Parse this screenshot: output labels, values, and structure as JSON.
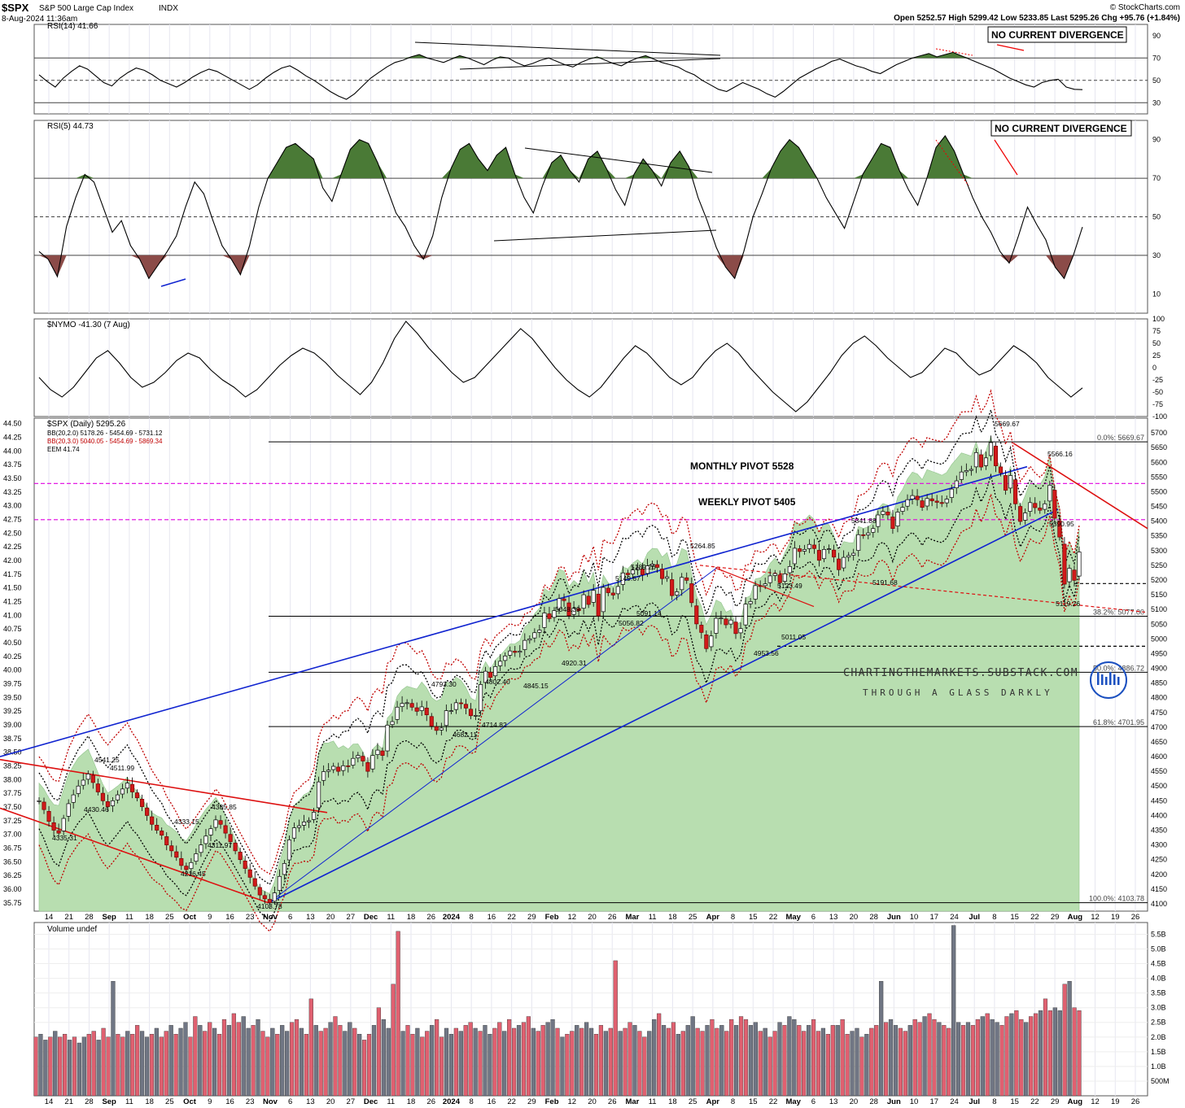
{
  "header": {
    "symbol": "$SPX",
    "name": "S&P 500 Large Cap Index",
    "exchange": "INDX",
    "datetime": "8-Aug-2024 11:36am",
    "brand": "© StockCharts.com",
    "quote": "Open 5252.57  High 5299.42  Low 5233.85  Last 5295.26  Chg +95.76 (+1.84%)"
  },
  "colors": {
    "up_candle": "#ffffff",
    "down_candle": "#d11a1a",
    "volume_up": "#e06070",
    "volume_down": "#707684",
    "rsi_fill_high": "#4a7a36",
    "rsi_fill_low": "#8b4b48",
    "eem_fill": "#b8deb0",
    "blue_trendline": "#1024d0",
    "red_trendline": "#dd1010",
    "pivot_line": "#e000e0",
    "bollinger": "#c00000"
  },
  "panels": {
    "rsi14": {
      "legend": "RSI(14) 41.66",
      "note": "NO CURRENT DIVERGENCE",
      "ticks": [
        "90",
        "70",
        "50",
        "30"
      ]
    },
    "rsi5": {
      "legend": "RSI(5) 44.73",
      "note": "NO CURRENT DIVERGENCE",
      "ticks": [
        "90",
        "70",
        "50",
        "30",
        "10"
      ]
    },
    "nymo": {
      "legend": "$NYMO -41.30 (7 Aug)",
      "ticks": [
        "100",
        "75",
        "50",
        "25",
        "0",
        "-25",
        "-50",
        "-75",
        "-100"
      ]
    },
    "price": {
      "legend_1": "$SPX (Daily) 5295.26",
      "legend_2": "BB(20,2.0) 5178.26 - 5454.69 - 5731.12",
      "legend_3": "BB(20,3.0) 5040.05 - 5454.69 - 5869.34",
      "legend_4": "EEM 41.74",
      "monthly_pivot": "MONTHLY PIVOT 5528",
      "weekly_pivot": "WEEKLY PIVOT 5405",
      "watermark_1": "CHARTINGTHEMARKETS.SUBSTACK.COM",
      "watermark_2": "THROUGH A GLASS DARKLY",
      "left_ticks": [
        "44.50",
        "44.25",
        "44.00",
        "43.75",
        "43.50",
        "43.25",
        "43.00",
        "42.75",
        "42.50",
        "42.25",
        "42.00",
        "41.75",
        "41.50",
        "41.25",
        "41.00",
        "40.75",
        "40.50",
        "40.25",
        "40.00",
        "39.75",
        "39.50",
        "39.25",
        "39.00",
        "38.75",
        "38.50",
        "38.25",
        "38.00",
        "37.75",
        "37.50",
        "37.25",
        "37.00",
        "36.75",
        "36.50",
        "36.25",
        "36.00",
        "35.75"
      ],
      "right_ticks": [
        "5700",
        "5650",
        "5600",
        "5550",
        "5500",
        "5450",
        "5400",
        "5350",
        "5300",
        "5250",
        "5200",
        "5150",
        "5100",
        "5050",
        "5000",
        "4950",
        "4900",
        "4850",
        "4800",
        "4750",
        "4700",
        "4650",
        "4600",
        "4550",
        "4500",
        "4450",
        "4400",
        "4350",
        "4300",
        "4250",
        "4200",
        "4150",
        "4100"
      ],
      "fib_labels": [
        "0.0%: 5669.67",
        "38.2%: 5077.00",
        "50.0%: 4886.72",
        "61.8%: 4701.95",
        "100.0%: 4103.78"
      ],
      "price_labels": [
        "5669.67",
        "5566.16",
        "5390.95",
        "5119.26",
        "5341.88",
        "5191.68",
        "5123.49",
        "5011.05",
        "4953.56",
        "5264.85",
        "5189.26",
        "5149.67",
        "5091.14",
        "5056.82",
        "5048.39",
        "4920.31",
        "4845.15",
        "4802.40",
        "4793.30",
        "4714.82",
        "4682.11",
        "4541.25",
        "4511.99",
        "4430.46",
        "4385.85",
        "4333.15",
        "4335.31",
        "4311.97",
        "4216.45",
        "4103.78"
      ]
    },
    "volume": {
      "legend": "Volume undef",
      "ticks": [
        "5.5B",
        "5.0B",
        "4.5B",
        "4.0B",
        "3.5B",
        "3.0B",
        "2.5B",
        "2.0B",
        "1.5B",
        "1.0B",
        "500M"
      ]
    }
  },
  "x_axis_labels": [
    "14",
    "21",
    "28",
    "Sep",
    "11",
    "18",
    "25",
    "Oct",
    "9",
    "16",
    "23",
    "Nov",
    "6",
    "13",
    "20",
    "27",
    "Dec",
    "11",
    "18",
    "26",
    "2024",
    "8",
    "16",
    "22",
    "29",
    "Feb",
    "12",
    "20",
    "26",
    "Mar",
    "11",
    "18",
    "25",
    "Apr",
    "8",
    "15",
    "22",
    "May",
    "6",
    "13",
    "20",
    "28",
    "Jun",
    "10",
    "17",
    "24",
    "Jul",
    "8",
    "15",
    "22",
    "29",
    "Aug",
    "12",
    "19",
    "26"
  ],
  "chart_data": [
    {
      "type": "line",
      "title": "RSI(14) 41.66",
      "ylim": [
        20,
        100
      ],
      "reference_lines": [
        70,
        50,
        30
      ],
      "values": [
        55,
        49,
        44,
        52,
        58,
        63,
        60,
        54,
        48,
        45,
        52,
        57,
        61,
        59,
        55,
        50,
        47,
        44,
        48,
        53,
        57,
        60,
        58,
        54,
        50,
        46,
        42,
        46,
        52,
        57,
        61,
        63,
        59,
        54,
        50,
        45,
        40,
        36,
        33,
        38,
        45,
        52,
        57,
        62,
        66,
        68,
        71,
        73,
        70,
        68,
        66,
        69,
        72,
        70,
        67,
        64,
        68,
        71,
        70,
        66,
        63,
        65,
        68,
        70,
        67,
        64,
        62,
        66,
        69,
        71,
        68,
        65,
        63,
        67,
        70,
        72,
        69,
        66,
        64,
        62,
        58,
        55,
        50,
        46,
        42,
        40,
        44,
        48,
        45,
        42,
        38,
        35,
        40,
        46,
        52,
        56,
        60,
        63,
        67,
        69,
        66,
        63,
        61,
        58,
        56,
        60,
        64,
        67,
        70,
        72,
        74,
        71,
        73,
        75,
        72,
        69,
        66,
        63,
        60,
        56,
        52,
        49,
        46,
        44,
        48,
        50,
        51,
        44,
        42,
        41.66
      ]
    },
    {
      "type": "line",
      "title": "RSI(5) 44.73",
      "ylim": [
        0,
        100
      ],
      "reference_lines": [
        70,
        50,
        30
      ],
      "values": [
        32,
        28,
        19,
        45,
        60,
        72,
        68,
        55,
        42,
        48,
        35,
        28,
        18,
        25,
        32,
        40,
        55,
        68,
        62,
        48,
        35,
        28,
        20,
        35,
        55,
        70,
        78,
        86,
        88,
        84,
        80,
        65,
        58,
        72,
        85,
        90,
        88,
        78,
        65,
        52,
        45,
        35,
        28,
        40,
        60,
        75,
        85,
        88,
        80,
        74,
        82,
        86,
        72,
        60,
        52,
        66,
        78,
        82,
        74,
        68,
        80,
        84,
        75,
        64,
        56,
        72,
        80,
        74,
        66,
        78,
        84,
        76,
        60,
        48,
        34,
        24,
        18,
        32,
        50,
        62,
        75,
        84,
        90,
        86,
        78,
        70,
        60,
        52,
        44,
        58,
        72,
        80,
        88,
        86,
        74,
        64,
        56,
        70,
        86,
        92,
        84,
        72,
        60,
        50,
        42,
        32,
        26,
        40,
        55,
        46,
        38,
        24,
        18,
        30,
        44.73
      ]
    },
    {
      "type": "line",
      "title": "$NYMO -41.30 (7 Aug)",
      "ylim": [
        -100,
        100
      ],
      "values": [
        -20,
        -45,
        -60,
        -40,
        -10,
        20,
        35,
        10,
        -20,
        -40,
        -30,
        -10,
        15,
        30,
        20,
        -5,
        -25,
        -40,
        -60,
        -45,
        -20,
        5,
        25,
        40,
        30,
        10,
        -15,
        -35,
        -55,
        -30,
        10,
        60,
        95,
        70,
        40,
        15,
        -10,
        -30,
        -20,
        5,
        30,
        55,
        80,
        60,
        30,
        0,
        -25,
        -45,
        -60,
        -40,
        -10,
        20,
        45,
        30,
        5,
        -20,
        -35,
        -20,
        10,
        35,
        50,
        30,
        0,
        -25,
        -50,
        -70,
        -90,
        -70,
        -40,
        -10,
        25,
        50,
        65,
        45,
        20,
        0,
        -20,
        -10,
        15,
        40,
        30,
        5,
        -15,
        -5,
        20,
        45,
        30,
        10,
        -20,
        -40,
        -60,
        -41.3
      ]
    },
    {
      "type": "candlestick",
      "title": "$SPX (Daily) 5295.26",
      "ylim": [
        4075,
        5750
      ],
      "secondary_y": {
        "label": "EEM 41.74",
        "ylim": [
          35.6,
          44.6
        ]
      },
      "horizontal_levels": {
        "monthly_pivot": 5528,
        "weekly_pivot": 5405,
        "fib_0": 5669.67,
        "fib_38_2": 5077.0,
        "fib_50": 4886.72,
        "fib_61_8": 4701.95,
        "fib_100": 4103.78
      },
      "key_points": [
        {
          "label": "4335.31",
          "value": 4335.31
        },
        {
          "label": "4541.25",
          "value": 4541.25
        },
        {
          "label": "4103.78",
          "value": 4103.78
        },
        {
          "label": "4793.30",
          "value": 4793.3
        },
        {
          "label": "4682.11",
          "value": 4682.11
        },
        {
          "label": "5264.85",
          "value": 5264.85
        },
        {
          "label": "4953.56",
          "value": 4953.56
        },
        {
          "label": "5341.88",
          "value": 5341.88
        },
        {
          "label": "5669.67",
          "value": 5669.67
        },
        {
          "label": "5566.16",
          "value": 5566.16
        },
        {
          "label": "5390.95",
          "value": 5390.95
        },
        {
          "label": "5119.26",
          "value": 5119.26
        }
      ],
      "close_path": [
        4450,
        4420,
        4380,
        4350,
        4340,
        4390,
        4440,
        4470,
        4500,
        4520,
        4541,
        4512,
        4480,
        4450,
        4430,
        4450,
        4470,
        4490,
        4510,
        4480,
        4460,
        4430,
        4400,
        4370,
        4350,
        4333,
        4300,
        4280,
        4258,
        4230,
        4216,
        4240,
        4270,
        4300,
        4330,
        4355,
        4385,
        4370,
        4340,
        4311,
        4280,
        4250,
        4220,
        4190,
        4160,
        4130,
        4117,
        4103.78,
        4137,
        4193,
        4237,
        4317,
        4358,
        4365,
        4378,
        4382,
        4411,
        4514,
        4549,
        4554,
        4567,
        4550,
        4569,
        4567,
        4594,
        4604,
        4585,
        4550,
        4604,
        4622,
        4604,
        4707,
        4719,
        4768,
        4781,
        4783,
        4768,
        4754,
        4769,
        4742,
        4704,
        4689,
        4697,
        4756,
        4756,
        4783,
        4780,
        4765,
        4739,
        4740,
        4845,
        4890,
        4869,
        4906,
        4924,
        4942,
        4959,
        4954,
        4958,
        4995,
        5000,
        5021,
        5030,
        5088,
        5069,
        5096,
        5137,
        5130,
        5079,
        5104,
        5096,
        5150,
        5117,
        5165,
        5078,
        5175,
        5157,
        5149,
        5178,
        5224,
        5218,
        5234,
        5241,
        5218,
        5248,
        5254,
        5243,
        5205,
        5211,
        5147,
        5160,
        5209,
        5199,
        5123,
        5051,
        5022,
        4967,
        5010,
        5070,
        5071,
        5048,
        5064,
        5018,
        5035,
        5118,
        5127,
        5181,
        5180,
        5187,
        5214,
        5222,
        5191,
        5221,
        5246,
        5308,
        5297,
        5304,
        5321,
        5307,
        5267,
        5304,
        5306,
        5278,
        5235,
        5277,
        5283,
        5291,
        5354,
        5352,
        5360,
        5375,
        5421,
        5433,
        5421,
        5375,
        5431,
        5447,
        5473,
        5487,
        5473,
        5447,
        5477,
        5469,
        5464,
        5460,
        5475,
        5509,
        5537,
        5567,
        5572,
        5576,
        5633,
        5584,
        5615,
        5667,
        5588,
        5564,
        5505,
        5555,
        5459,
        5399,
        5428,
        5463,
        5446,
        5437,
        5459,
        5522,
        5410,
        5346,
        5186,
        5240,
        5199,
        5295.26
      ]
    },
    {
      "type": "bar",
      "title": "Volume undef",
      "ylim": [
        0,
        5.9
      ],
      "unit": "B",
      "values": [
        2.0,
        2.1,
        1.9,
        2.0,
        2.2,
        2.0,
        2.1,
        1.9,
        2.0,
        1.8,
        2.0,
        2.1,
        2.2,
        1.9,
        2.3,
        2.0,
        3.9,
        2.1,
        2.0,
        2.2,
        2.1,
        2.4,
        2.2,
        2.0,
        2.1,
        2.3,
        2.0,
        2.2,
        2.4,
        2.1,
        2.3,
        2.5,
        2.0,
        2.7,
        2.4,
        2.2,
        2.5,
        2.3,
        2.1,
        2.6,
        2.4,
        2.8,
        2.5,
        2.7,
        2.3,
        2.4,
        2.6,
        2.2,
        2.0,
        2.3,
        2.1,
        2.4,
        2.2,
        2.5,
        2.6,
        2.3,
        2.1,
        3.3,
        2.4,
        2.2,
        2.3,
        2.5,
        2.7,
        2.4,
        2.2,
        2.5,
        2.3,
        2.1,
        1.9,
        2.1,
        2.4,
        3.0,
        2.6,
        2.3,
        3.8,
        5.6,
        2.2,
        2.4,
        2.1,
        2.3,
        2.0,
        2.2,
        2.4,
        2.6,
        2.0,
        2.3,
        2.1,
        2.3,
        2.2,
        2.4,
        2.5,
        2.3,
        2.2,
        2.4,
        2.1,
        2.3,
        2.5,
        2.2,
        2.6,
        2.3,
        2.4,
        2.5,
        2.7,
        2.3,
        2.2,
        2.4,
        2.5,
        2.6,
        2.3,
        2.0,
        2.1,
        2.2,
        2.4,
        2.3,
        2.5,
        2.3,
        2.1,
        2.4,
        2.2,
        2.3,
        4.6,
        2.2,
        2.3,
        2.5,
        2.4,
        2.2,
        2.0,
        2.2,
        2.6,
        2.8,
        2.4,
        2.3,
        2.5,
        2.1,
        2.2,
        2.4,
        2.7,
        2.3,
        2.2,
        2.4,
        2.6,
        2.3,
        2.4,
        2.2,
        2.6,
        2.4,
        2.7,
        2.6,
        2.4,
        2.5,
        2.2,
        2.3,
        2.0,
        2.2,
        2.5,
        2.4,
        2.7,
        2.6,
        2.4,
        2.2,
        2.4,
        2.6,
        2.2,
        2.3,
        2.1,
        2.4,
        2.4,
        2.6,
        2.1,
        2.2,
        2.3,
        2.0,
        2.1,
        2.3,
        2.4,
        3.9,
        2.5,
        2.6,
        2.4,
        2.3,
        2.2,
        2.4,
        2.6,
        2.5,
        2.7,
        2.8,
        2.6,
        2.5,
        2.4,
        2.3,
        5.8,
        2.5,
        2.4,
        2.5,
        2.4,
        2.6,
        2.7,
        2.8,
        2.6,
        2.5,
        2.4,
        2.7,
        2.8,
        2.9,
        2.6,
        2.5,
        2.7,
        2.8,
        2.9,
        3.3,
        2.9,
        3.0,
        2.9,
        3.8,
        3.9,
        3.0,
        2.9
      ]
    }
  ]
}
